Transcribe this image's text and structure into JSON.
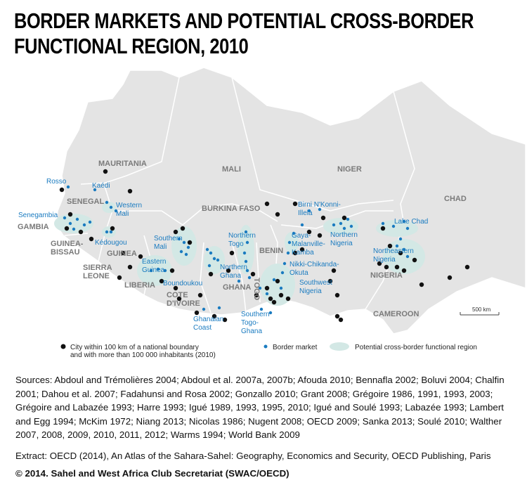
{
  "title": "BORDER MARKETS AND POTENTIAL CROSS-BORDER FUNCTIONAL REGION, 2010",
  "countries": [
    {
      "lines": [
        "MAURITANIA"
      ]
    },
    {
      "lines": [
        "MALI"
      ]
    },
    {
      "lines": [
        "NIGER"
      ]
    },
    {
      "lines": [
        "CHAD"
      ]
    },
    {
      "lines": [
        "SENEGAL"
      ]
    },
    {
      "lines": [
        "GAMBIA"
      ]
    },
    {
      "lines": [
        "GUINEA-",
        "BISSAU"
      ]
    },
    {
      "lines": [
        "GUINEA"
      ]
    },
    {
      "lines": [
        "SIERRA",
        "LEONE"
      ]
    },
    {
      "lines": [
        "LIBERIA"
      ]
    },
    {
      "lines": [
        "COTE",
        "D'IVOIRE"
      ]
    },
    {
      "lines": [
        "BURKINA FASO"
      ]
    },
    {
      "lines": [
        "GHANA"
      ]
    },
    {
      "lines": [
        "TOGO"
      ]
    },
    {
      "lines": [
        "BENIN"
      ]
    },
    {
      "lines": [
        "NIGERIA"
      ]
    },
    {
      "lines": [
        "CAMEROON"
      ]
    }
  ],
  "regions": [
    {
      "lines": [
        "Rosso"
      ]
    },
    {
      "lines": [
        "Kaédi"
      ]
    },
    {
      "lines": [
        "Western",
        "Mali"
      ]
    },
    {
      "lines": [
        "Senegambia"
      ]
    },
    {
      "lines": [
        "Kédougou"
      ]
    },
    {
      "lines": [
        "Southern",
        "Mali"
      ]
    },
    {
      "lines": [
        "Eastern",
        "Guinea"
      ]
    },
    {
      "lines": [
        "Boundoukou"
      ]
    },
    {
      "lines": [
        "Northern",
        "Ghana"
      ]
    },
    {
      "lines": [
        "Northern",
        "Togo"
      ]
    },
    {
      "lines": [
        "Ghanaian",
        "Coast"
      ]
    },
    {
      "lines": [
        "Southern",
        "Togo-",
        "Ghana"
      ]
    },
    {
      "lines": [
        "Gaya-",
        "Malanville-",
        "Kamba"
      ]
    },
    {
      "lines": [
        "Nikki-Chikanda-",
        "Okuta"
      ]
    },
    {
      "lines": [
        "Southwest",
        "Nigeria"
      ]
    },
    {
      "lines": [
        "Birni N'Konni-",
        "Illela"
      ]
    },
    {
      "lines": [
        "Northern",
        "Nigeria"
      ]
    },
    {
      "lines": [
        "Lake Chad"
      ]
    },
    {
      "lines": [
        "Northeastern",
        "Nigeria"
      ]
    }
  ],
  "scale": "500 km",
  "legend": {
    "city": "City within 100 km of a national boundary and with more than 100 000 inhabitants (2010)",
    "market": "Border market",
    "region": "Potential cross-border functional region"
  },
  "sources": "Sources: Abdoul and Trémolières 2004; Abdoul et al. 2007a, 2007b; Afouda 2010; Bennafla 2002; Boluvi 2004; Chalfin 2001; Dahou et al. 2007; Fadahunsi and Rosa 2002; Gonzallo 2010; Grant 2008; Grégoire 1986, 1991, 1993, 2003; Grégoire and Labazée 1993; Harre 1993; Igué 1989, 1993, 1995, 2010; Igué and Soulé 1993; Labazée 1993; Lambert and Egg 1994; McKim 1972; Niang 2013; Nicolas 1986; Nugent 2008; OECD 2009; Sanka 2013; Soulé 2010;  Walther 2007, 2008, 2009, 2010, 2011, 2012; Warms 1994; World Bank 2009",
  "extract": "Extract: OECD (2014), An Atlas of the Sahara-Sahel: Geography, Economics  and Security, OECD Publishing, Paris",
  "copyright": "© 2014. Sahel and West Africa Club Secretariat (SWAC/OECD)"
}
